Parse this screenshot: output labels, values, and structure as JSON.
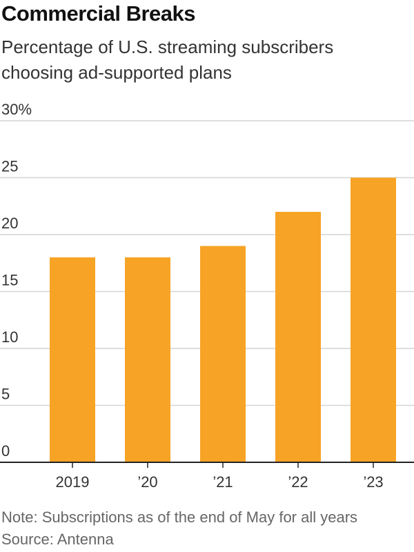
{
  "title": "Commercial Breaks",
  "subtitle": "Percentage of U.S. streaming subscribers choosing ad-supported plans",
  "note": "Note: Subscriptions as of the end of May for all years",
  "source": "Source: Antenna",
  "colors": {
    "bar": "#f7a325",
    "grid": "#d4d4d4",
    "axis": "#222222",
    "tick_text": "#333333"
  },
  "chart_data": {
    "type": "bar",
    "categories": [
      "2019",
      "’20",
      "’21",
      "’22",
      "’23"
    ],
    "values": [
      18,
      18,
      19,
      22,
      25
    ],
    "ylim": [
      0,
      30
    ],
    "y_ticks": [
      0,
      5,
      10,
      15,
      20,
      25,
      30
    ],
    "y_tick_labels": [
      "0",
      "5",
      "10",
      "15",
      "20",
      "25",
      "30%"
    ],
    "grid": true,
    "xlabel": "",
    "ylabel": ""
  }
}
